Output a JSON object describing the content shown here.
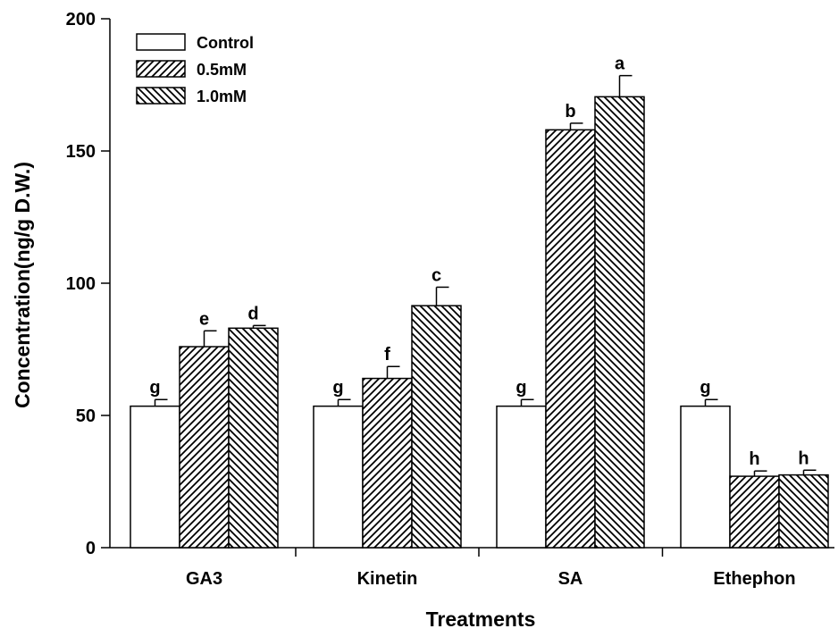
{
  "chart_data": {
    "type": "bar",
    "title": "",
    "xlabel": "Treatments",
    "ylabel": "Concentration(ng/g D.W.)",
    "ylim": [
      0,
      200
    ],
    "yticks": [
      0,
      50,
      100,
      150,
      200
    ],
    "grid": false,
    "legend_position": "top-left",
    "categories": [
      "GA3",
      "Kinetin",
      "SA",
      "Ethephon"
    ],
    "series": [
      {
        "name": "Control",
        "pattern": "solid-white",
        "values": [
          53.5,
          53.5,
          53.5,
          53.5
        ],
        "errors": [
          2.5,
          2.5,
          2.5,
          2.5
        ],
        "labels": [
          "g",
          "g",
          "g",
          "g"
        ]
      },
      {
        "name": "0.5mM",
        "pattern": "diagonal-forward",
        "values": [
          76,
          64,
          158,
          27
        ],
        "errors": [
          6,
          4.5,
          2.5,
          2
        ],
        "labels": [
          "e",
          "f",
          "b",
          "h"
        ]
      },
      {
        "name": "1.0mM",
        "pattern": "diagonal-back",
        "values": [
          83,
          91.5,
          170.5,
          27.5
        ],
        "errors": [
          1,
          7,
          8,
          1.8
        ],
        "labels": [
          "d",
          "c",
          "a",
          "h"
        ]
      }
    ],
    "colors": {
      "bar_fill": "#ffffff",
      "stroke": "#000000"
    }
  }
}
